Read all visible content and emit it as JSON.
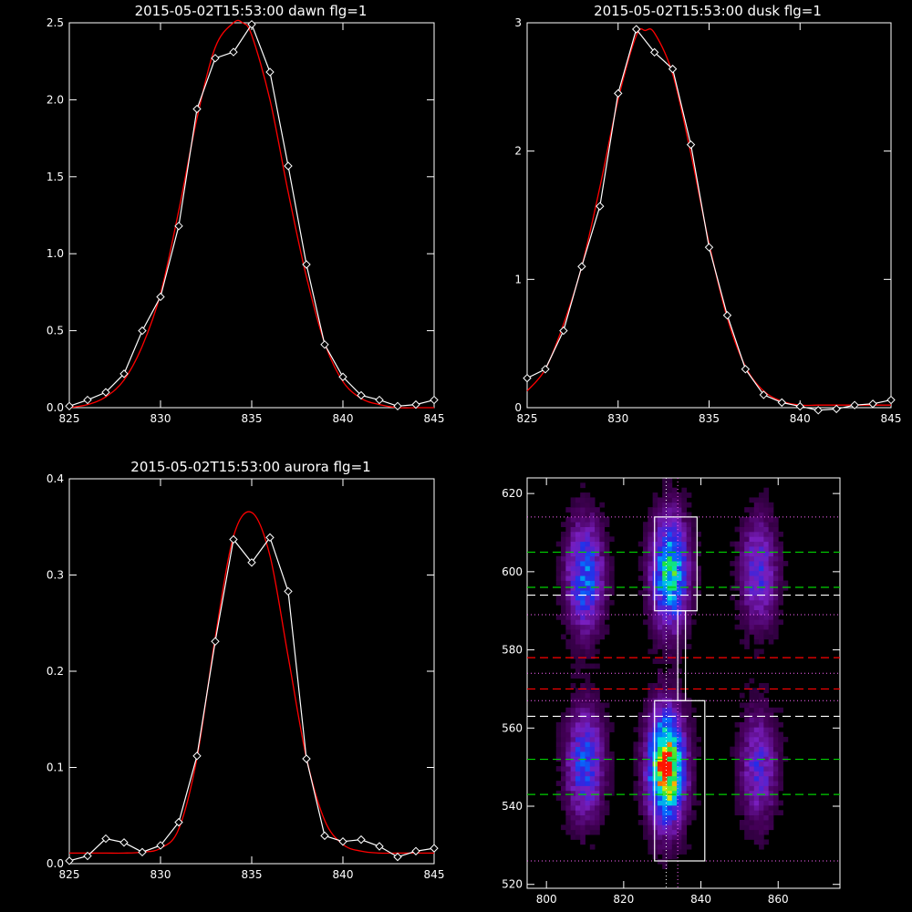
{
  "chart_data": [
    {
      "type": "line",
      "title": "2015-05-02T15:53:00 dawn flg=1",
      "xlim": [
        825,
        845
      ],
      "ylim": [
        0,
        2.5
      ],
      "xticks": [
        825,
        830,
        835,
        840,
        845
      ],
      "yticks": [
        0.0,
        0.5,
        1.0,
        1.5,
        2.0,
        2.5
      ],
      "ytick_labels": [
        "0.0",
        "0.5",
        "1.0",
        "1.5",
        "2.0",
        "2.5"
      ],
      "series": [
        {
          "color": "#ffffff",
          "markers": true,
          "x": [
            825,
            826,
            827,
            828,
            829,
            830,
            831,
            832,
            833,
            834,
            835,
            836,
            837,
            838,
            839,
            840,
            841,
            842,
            843,
            844,
            845
          ],
          "y": [
            0.01,
            0.05,
            0.1,
            0.22,
            0.5,
            0.72,
            1.18,
            1.94,
            2.27,
            2.31,
            2.49,
            2.18,
            1.57,
            0.93,
            0.41,
            0.2,
            0.08,
            0.05,
            0.01,
            0.02,
            0.05
          ]
        },
        {
          "color": "#ff0000",
          "markers": false,
          "x": [
            825,
            826,
            827,
            828,
            829,
            830,
            831,
            832,
            833,
            834,
            834.5,
            835,
            836,
            837,
            838,
            839,
            840,
            841,
            842,
            843,
            844,
            845
          ],
          "y": [
            0.0,
            0.02,
            0.07,
            0.18,
            0.4,
            0.74,
            1.28,
            1.88,
            2.34,
            2.5,
            2.5,
            2.42,
            2.0,
            1.4,
            0.85,
            0.42,
            0.17,
            0.06,
            0.02,
            0.0,
            0.0,
            0.0
          ]
        }
      ]
    },
    {
      "type": "line",
      "title": "2015-05-02T15:53:00 dusk flg=1",
      "xlim": [
        825,
        845
      ],
      "ylim": [
        0,
        3
      ],
      "xticks": [
        825,
        830,
        835,
        840,
        845
      ],
      "yticks": [
        0,
        1,
        2,
        3
      ],
      "ytick_labels": [
        "0",
        "1",
        "2",
        "3"
      ],
      "series": [
        {
          "color": "#ffffff",
          "markers": true,
          "x": [
            825,
            826,
            827,
            828,
            829,
            830,
            831,
            832,
            833,
            834,
            835,
            836,
            837,
            838,
            839,
            840,
            841,
            842,
            843,
            844,
            845
          ],
          "y": [
            0.23,
            0.3,
            0.6,
            1.1,
            1.57,
            2.45,
            2.95,
            2.77,
            2.64,
            2.05,
            1.25,
            0.72,
            0.3,
            0.1,
            0.04,
            0.01,
            -0.02,
            -0.01,
            0.02,
            0.03,
            0.06
          ]
        },
        {
          "color": "#ff0000",
          "markers": false,
          "x": [
            825,
            826,
            827,
            828,
            829,
            830,
            831,
            831.5,
            832,
            833,
            834,
            835,
            836,
            837,
            838,
            839,
            840,
            841,
            842,
            843,
            844,
            845
          ],
          "y": [
            0.13,
            0.3,
            0.65,
            1.1,
            1.72,
            2.4,
            2.9,
            2.94,
            2.92,
            2.6,
            1.98,
            1.28,
            0.7,
            0.32,
            0.13,
            0.05,
            0.02,
            0.02,
            0.02,
            0.02,
            0.02,
            0.02
          ]
        }
      ]
    },
    {
      "type": "line",
      "title": "2015-05-02T15:53:00 aurora flg=1",
      "xlim": [
        825,
        845
      ],
      "ylim": [
        0,
        0.4
      ],
      "xticks": [
        825,
        830,
        835,
        840,
        845
      ],
      "yticks": [
        0.0,
        0.1,
        0.2,
        0.3,
        0.4
      ],
      "ytick_labels": [
        "0.0",
        "0.1",
        "0.2",
        "0.3",
        "0.4"
      ],
      "series": [
        {
          "color": "#ffffff",
          "markers": true,
          "x": [
            825,
            826,
            827,
            828,
            829,
            830,
            831,
            832,
            833,
            834,
            835,
            836,
            837,
            838,
            839,
            840,
            841,
            842,
            843,
            844,
            845
          ],
          "y": [
            0.003,
            0.008,
            0.026,
            0.022,
            0.012,
            0.019,
            0.043,
            0.112,
            0.231,
            0.337,
            0.313,
            0.339,
            0.283,
            0.109,
            0.029,
            0.023,
            0.025,
            0.018,
            0.007,
            0.013,
            0.016
          ]
        },
        {
          "color": "#ff0000",
          "markers": false,
          "x": [
            825,
            826,
            827,
            828,
            829,
            830,
            831,
            832,
            833,
            834,
            835,
            836,
            837,
            838,
            839,
            840,
            841,
            842,
            843,
            844,
            845
          ],
          "y": [
            0.011,
            0.011,
            0.011,
            0.011,
            0.012,
            0.016,
            0.036,
            0.11,
            0.235,
            0.34,
            0.365,
            0.32,
            0.215,
            0.11,
            0.045,
            0.02,
            0.013,
            0.011,
            0.011,
            0.011,
            0.011
          ]
        }
      ]
    },
    {
      "type": "heatmap",
      "xlim": [
        795,
        876
      ],
      "ylim": [
        519,
        624
      ],
      "xticks": [
        800,
        820,
        840,
        860
      ],
      "yticks": [
        520,
        540,
        560,
        580,
        600,
        620
      ],
      "colormap": "rainbow",
      "blobs": [
        {
          "x": 810,
          "y": 599,
          "intensity": 0.5
        },
        {
          "x": 832,
          "y": 600,
          "intensity": 0.7
        },
        {
          "x": 855,
          "y": 600,
          "intensity": 0.35
        },
        {
          "x": 810,
          "y": 551,
          "intensity": 0.45
        },
        {
          "x": 831,
          "y": 550,
          "intensity": 1.0
        },
        {
          "x": 855,
          "y": 550,
          "intensity": 0.33
        }
      ],
      "boxes": [
        {
          "x0": 828,
          "x1": 839,
          "y0": 590,
          "y1": 614,
          "color": "#ffffff"
        },
        {
          "x0": 828,
          "x1": 841,
          "y0": 526,
          "y1": 567,
          "color": "#ffffff"
        },
        {
          "x0": 834,
          "x1": 836,
          "y0": 567,
          "y1": 590,
          "color": "#ffffff"
        }
      ],
      "hlines": [
        {
          "y": 605,
          "color": "#00d000",
          "style": "dashed"
        },
        {
          "y": 596,
          "color": "#00d000",
          "style": "dashed"
        },
        {
          "y": 594,
          "color": "#ffffff",
          "style": "dashed"
        },
        {
          "y": 578,
          "color": "#ff0000",
          "style": "dashed"
        },
        {
          "y": 570,
          "color": "#ff0000",
          "style": "dashed"
        },
        {
          "y": 563,
          "color": "#ffffff",
          "style": "dashed"
        },
        {
          "y": 552,
          "color": "#00d000",
          "style": "dashed"
        },
        {
          "y": 543,
          "color": "#00d000",
          "style": "dashed"
        },
        {
          "y": 614,
          "color": "#ff66ff",
          "style": "dotted"
        },
        {
          "y": 589,
          "color": "#ff66ff",
          "style": "dotted"
        },
        {
          "y": 574,
          "color": "#ff66ff",
          "style": "dotted"
        },
        {
          "y": 567,
          "color": "#ff66ff",
          "style": "dotted"
        },
        {
          "y": 526,
          "color": "#ff66ff",
          "style": "dotted"
        }
      ],
      "vlines": [
        {
          "x": 831,
          "color": "#ffffff",
          "style": "dotted"
        },
        {
          "x": 834,
          "color": "#ff66ff",
          "style": "dotted"
        }
      ]
    }
  ]
}
